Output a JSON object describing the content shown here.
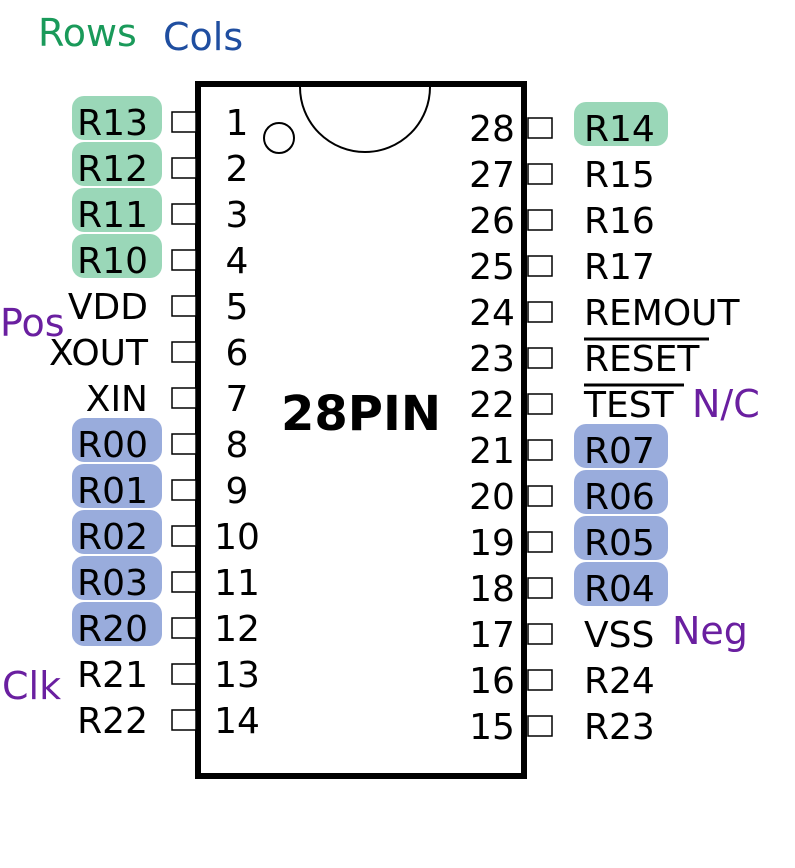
{
  "legend": {
    "rows": {
      "text": "Rows",
      "color": "#1a9a5a"
    },
    "cols": {
      "text": "Cols",
      "color": "#1f4ea0"
    }
  },
  "chip": {
    "label": "28PIN"
  },
  "highlight_colors": {
    "row": "#8fd3b0",
    "col": "#8ea3d8"
  },
  "annotation_color": "#6a1fa0",
  "left_pins": [
    {
      "num": "1",
      "name": "R13",
      "hl": "row"
    },
    {
      "num": "2",
      "name": "R12",
      "hl": "row"
    },
    {
      "num": "3",
      "name": "R11",
      "hl": "row"
    },
    {
      "num": "4",
      "name": "R10",
      "hl": "row"
    },
    {
      "num": "5",
      "name": "VDD",
      "hl": ""
    },
    {
      "num": "6",
      "name": "XOUT",
      "hl": ""
    },
    {
      "num": "7",
      "name": "XIN",
      "hl": ""
    },
    {
      "num": "8",
      "name": "R00",
      "hl": "col"
    },
    {
      "num": "9",
      "name": "R01",
      "hl": "col"
    },
    {
      "num": "10",
      "name": "R02",
      "hl": "col"
    },
    {
      "num": "11",
      "name": "R03",
      "hl": "col"
    },
    {
      "num": "12",
      "name": "R20",
      "hl": "col"
    },
    {
      "num": "13",
      "name": "R21",
      "hl": ""
    },
    {
      "num": "14",
      "name": "R22",
      "hl": ""
    }
  ],
  "right_pins": [
    {
      "num": "28",
      "name": "R14",
      "hl": "row",
      "overline": false
    },
    {
      "num": "27",
      "name": "R15",
      "hl": "",
      "overline": false
    },
    {
      "num": "26",
      "name": "R16",
      "hl": "",
      "overline": false
    },
    {
      "num": "25",
      "name": "R17",
      "hl": "",
      "overline": false
    },
    {
      "num": "24",
      "name": "REMOUT",
      "hl": "",
      "overline": false
    },
    {
      "num": "23",
      "name": "RESET",
      "hl": "",
      "overline": true
    },
    {
      "num": "22",
      "name": "TEST",
      "hl": "",
      "overline": true
    },
    {
      "num": "21",
      "name": "R07",
      "hl": "col",
      "overline": false
    },
    {
      "num": "20",
      "name": "R06",
      "hl": "col",
      "overline": false
    },
    {
      "num": "19",
      "name": "R05",
      "hl": "col",
      "overline": false
    },
    {
      "num": "18",
      "name": "R04",
      "hl": "col",
      "overline": false
    },
    {
      "num": "17",
      "name": "VSS",
      "hl": "",
      "overline": false
    },
    {
      "num": "16",
      "name": "R24",
      "hl": "",
      "overline": false
    },
    {
      "num": "15",
      "name": "R23",
      "hl": "",
      "overline": false
    }
  ],
  "annotations": [
    {
      "text": "Pos",
      "pin": "5"
    },
    {
      "text": "Clk",
      "pin": "13"
    },
    {
      "text": "N/C",
      "pin": "22"
    },
    {
      "text": "Neg",
      "pin": "17"
    }
  ]
}
